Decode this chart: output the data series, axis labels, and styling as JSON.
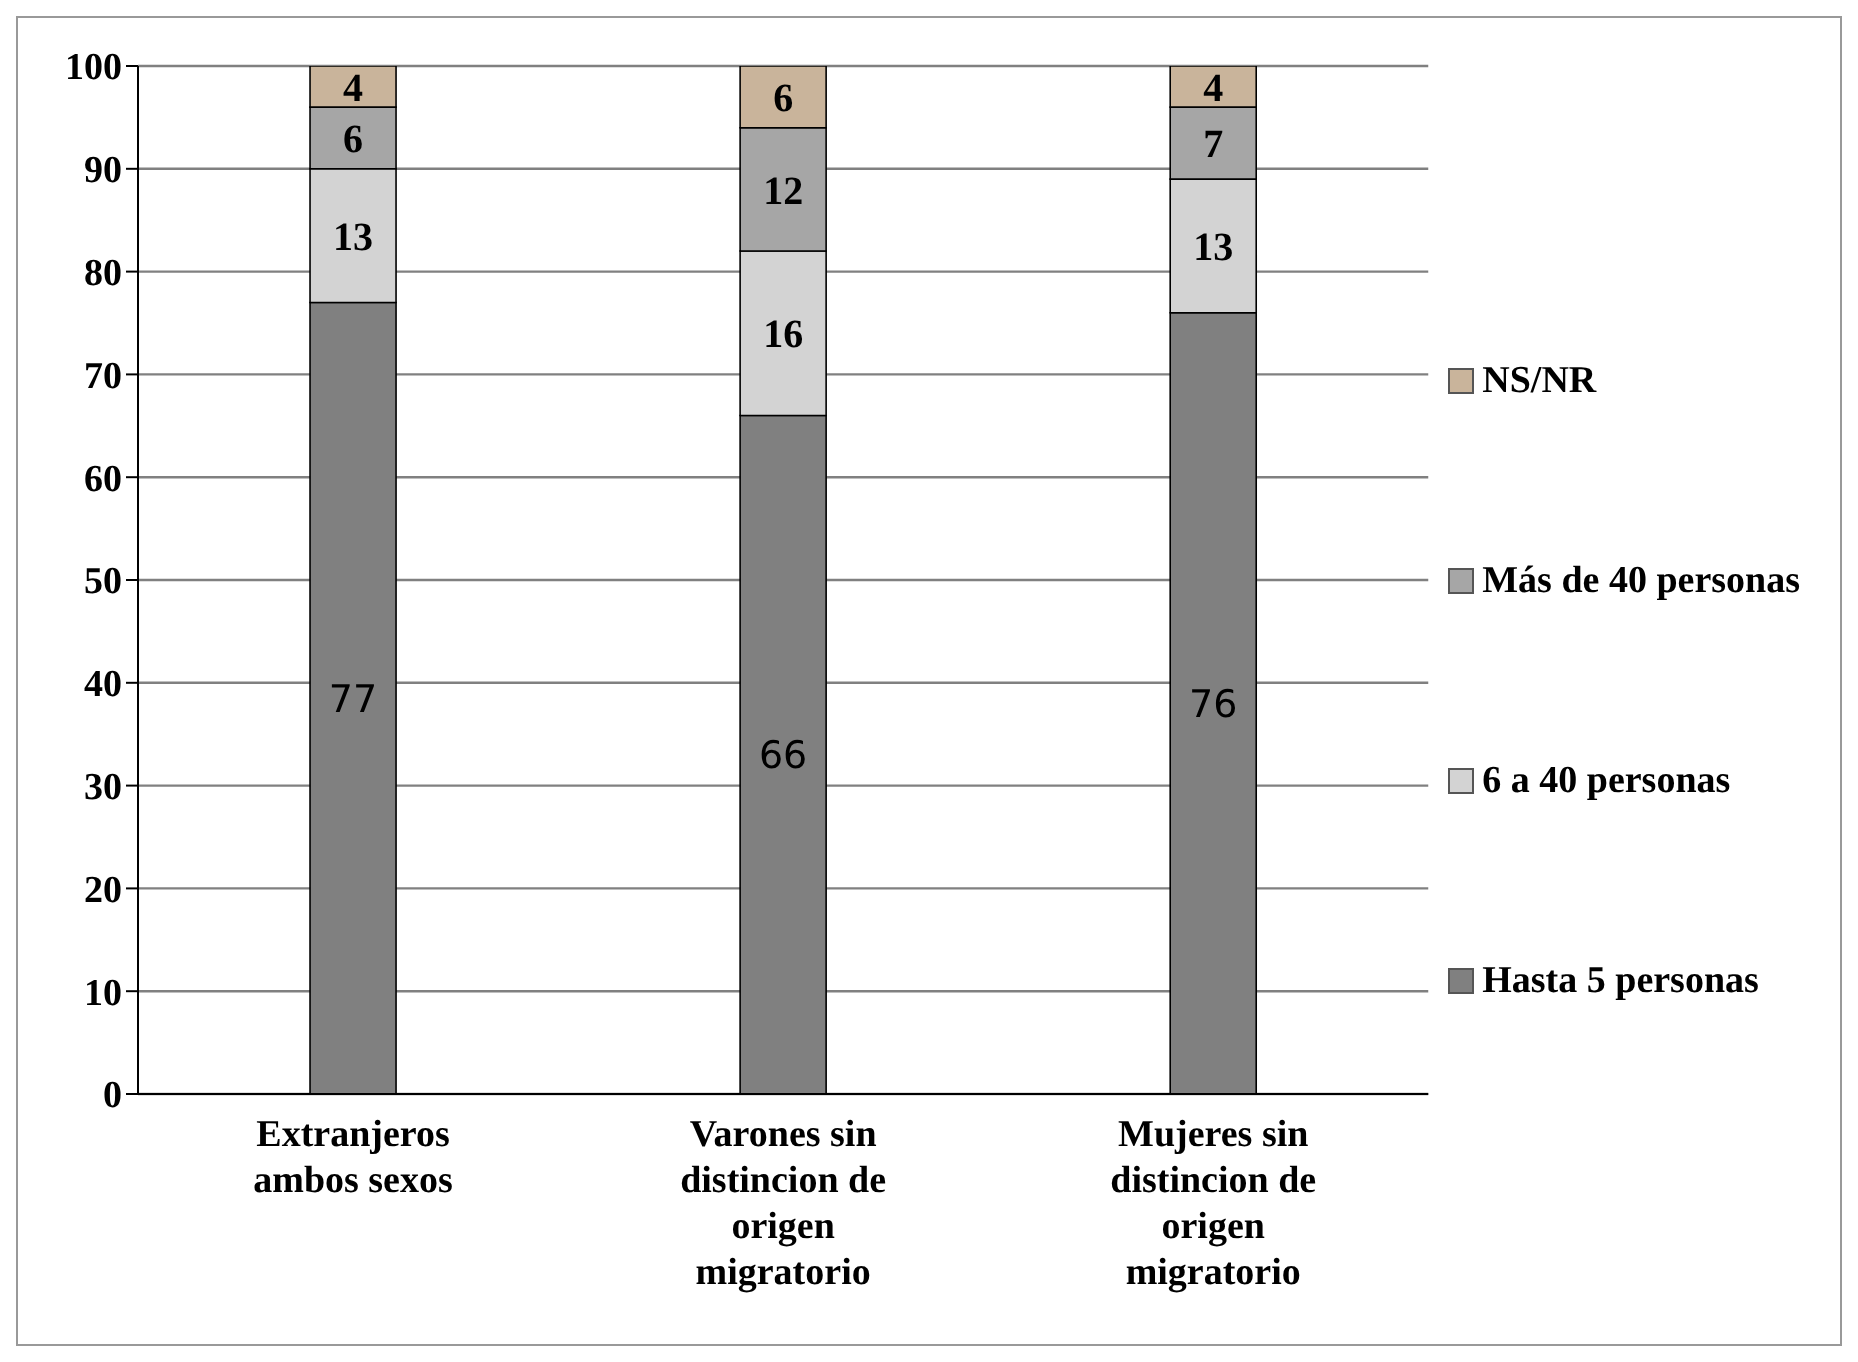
{
  "chart_data": {
    "type": "bar",
    "stacked": true,
    "categories": [
      "Extranjeros ambos sexos",
      "Varones sin distincion de origen migratorio",
      "Mujeres sin distincion de origen migratorio"
    ],
    "series": [
      {
        "name": "Hasta 5 personas",
        "color": "#808080",
        "values": [
          77,
          66,
          76
        ]
      },
      {
        "name": "6 a 40 personas",
        "color": "#d3d3d3",
        "values": [
          13,
          16,
          13
        ]
      },
      {
        "name": "Más de 40 personas",
        "color": "#a6a6a6",
        "values": [
          6,
          12,
          7
        ]
      },
      {
        "name": "NS/NR",
        "color": "#c9b49b",
        "values": [
          4,
          6,
          4
        ]
      }
    ],
    "ylim": [
      0,
      100
    ],
    "yticks": [
      0,
      10,
      20,
      30,
      40,
      50,
      60,
      70,
      80,
      90,
      100
    ],
    "grid": "y",
    "legend": "right",
    "data_labels": true
  }
}
